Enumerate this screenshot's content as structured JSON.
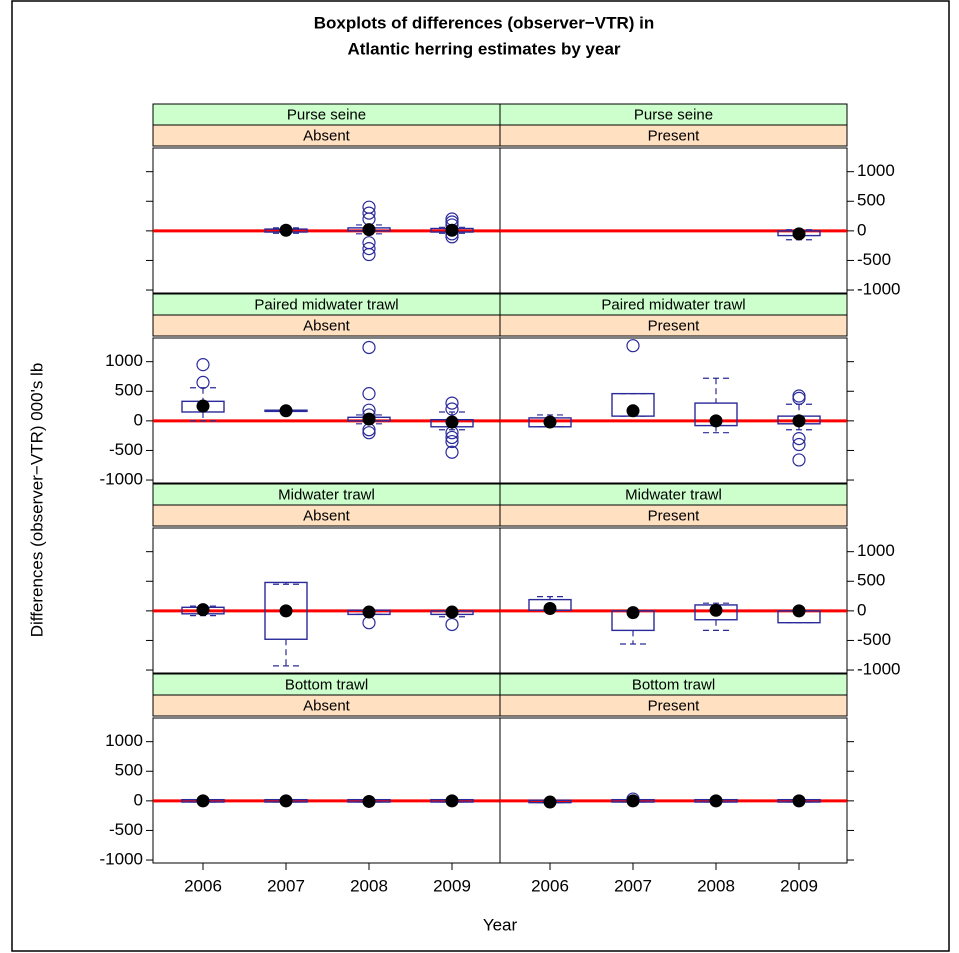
{
  "title": [
    "Boxplots of differences (observer−VTR) in",
    "Atlantic herring estimates by year"
  ],
  "x_label": "Year",
  "y_label": "Differences (observer−VTR) 000's lb",
  "categories": [
    "2006",
    "2007",
    "2008",
    "2009"
  ],
  "ylim": [
    -1050,
    1400
  ],
  "yticks": [
    -1000,
    -500,
    0,
    500,
    1000
  ],
  "hline": 0,
  "box_color": "#2a2a9a",
  "line_color": "#ff0000",
  "strip_colors": [
    "#ccffcc",
    "#ffe0c0"
  ],
  "chart_data": [
    {
      "type": "box",
      "strips": [
        "Purse seine",
        "Absent"
      ],
      "q1": [
        null,
        -20,
        0,
        -20
      ],
      "median": [
        null,
        10,
        20,
        10
      ],
      "q3": [
        null,
        30,
        50,
        40
      ],
      "whisker_low": [
        null,
        -40,
        -50,
        -40
      ],
      "whisker_high": [
        null,
        50,
        100,
        60
      ],
      "outliers": [
        [],
        [],
        [
          400,
          300,
          200,
          -200,
          -300,
          -400
        ],
        [
          200,
          150,
          100,
          -50,
          -100
        ]
      ]
    },
    {
      "type": "box",
      "strips": [
        "Purse seine",
        "Present"
      ],
      "q1": [
        null,
        null,
        null,
        -80
      ],
      "median": [
        null,
        null,
        null,
        -50
      ],
      "q3": [
        null,
        null,
        null,
        0
      ],
      "whisker_low": [
        null,
        null,
        null,
        -150
      ],
      "whisker_high": [
        null,
        null,
        null,
        20
      ],
      "outliers": [
        [],
        [],
        [],
        []
      ]
    },
    {
      "type": "box",
      "strips": [
        "Paired midwater trawl",
        "Absent"
      ],
      "q1": [
        150,
        160,
        0,
        -100
      ],
      "median": [
        250,
        170,
        30,
        -20
      ],
      "q3": [
        330,
        180,
        60,
        20
      ],
      "whisker_low": [
        0,
        160,
        -50,
        -150
      ],
      "whisker_high": [
        560,
        180,
        100,
        150
      ],
      "outliers": [
        [
          950,
          650
        ],
        [],
        [
          1240,
          460,
          180,
          100,
          -150,
          -200
        ],
        [
          300,
          200,
          -200,
          -280,
          -350,
          -530
        ]
      ]
    },
    {
      "type": "box",
      "strips": [
        "Paired midwater trawl",
        "Present"
      ],
      "q1": [
        -100,
        80,
        -80,
        -50
      ],
      "median": [
        -20,
        170,
        0,
        0
      ],
      "q3": [
        50,
        460,
        300,
        80
      ],
      "whisker_low": [
        -100,
        80,
        -200,
        -150
      ],
      "whisker_high": [
        100,
        460,
        720,
        280
      ],
      "outliers": [
        [],
        [
          1270
        ],
        [],
        [
          420,
          380,
          -300,
          -400,
          -660
        ]
      ]
    },
    {
      "type": "box",
      "strips": [
        "Midwater trawl",
        "Absent"
      ],
      "q1": [
        -50,
        -480,
        -60,
        -60
      ],
      "median": [
        20,
        0,
        -20,
        -20
      ],
      "q3": [
        60,
        480,
        10,
        0
      ],
      "whisker_low": [
        -80,
        -930,
        -60,
        -100
      ],
      "whisker_high": [
        80,
        450,
        10,
        0
      ],
      "outliers": [
        [],
        [],
        [
          -200
        ],
        [
          -230
        ]
      ]
    },
    {
      "type": "box",
      "strips": [
        "Midwater trawl",
        "Present"
      ],
      "q1": [
        10,
        -330,
        -150,
        -200
      ],
      "median": [
        40,
        -30,
        10,
        0
      ],
      "q3": [
        190,
        0,
        100,
        0
      ],
      "whisker_low": [
        10,
        -560,
        -330,
        -200
      ],
      "whisker_high": [
        240,
        0,
        130,
        0
      ],
      "outliers": [
        [],
        [],
        [],
        []
      ]
    },
    {
      "type": "box",
      "strips": [
        "Bottom trawl",
        "Absent"
      ],
      "q1": [
        -20,
        -20,
        -20,
        -20
      ],
      "median": [
        0,
        0,
        -10,
        0
      ],
      "q3": [
        20,
        20,
        20,
        20
      ],
      "whisker_low": [
        -20,
        -20,
        -20,
        -20
      ],
      "whisker_high": [
        20,
        20,
        20,
        20
      ],
      "outliers": [
        [],
        [],
        [],
        []
      ]
    },
    {
      "type": "box",
      "strips": [
        "Bottom trawl",
        "Present"
      ],
      "q1": [
        -30,
        -20,
        -20,
        -20
      ],
      "median": [
        -20,
        0,
        0,
        0
      ],
      "q3": [
        10,
        20,
        20,
        20
      ],
      "whisker_low": [
        -30,
        -20,
        -20,
        -20
      ],
      "whisker_high": [
        10,
        20,
        20,
        20
      ],
      "outliers": [
        [],
        [
          30
        ],
        [],
        []
      ]
    }
  ]
}
